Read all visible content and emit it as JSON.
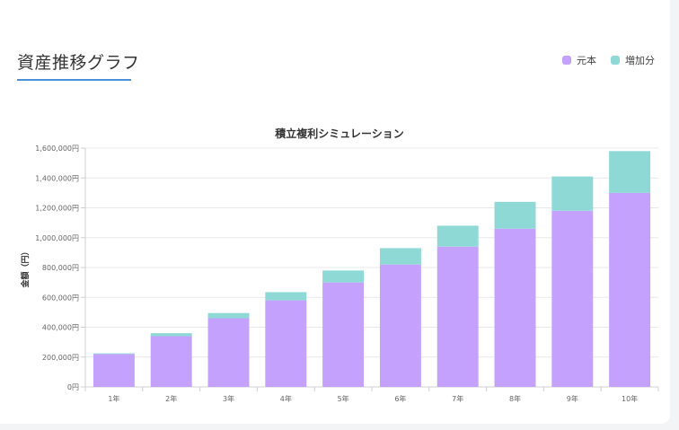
{
  "header": {
    "title": "資産推移グラフ"
  },
  "colors": {
    "principal": "#c3a1fc",
    "gain": "#8ed9d6",
    "title_underline": "#4a90d9"
  },
  "chart_data": {
    "type": "bar",
    "stacked": true,
    "title": "積立複利シミュレーション",
    "ylabel": "金額（円）",
    "xlabel": "",
    "categories": [
      "1年",
      "2年",
      "3年",
      "4年",
      "5年",
      "6年",
      "7年",
      "8年",
      "9年",
      "10年"
    ],
    "series": [
      {
        "name": "元本",
        "color": "#c3a1fc",
        "values": [
          220000,
          340000,
          460000,
          580000,
          700000,
          820000,
          940000,
          1060000,
          1180000,
          1300000
        ]
      },
      {
        "name": "増加分",
        "color": "#8ed9d6",
        "values": [
          5000,
          20000,
          35000,
          55000,
          80000,
          110000,
          140000,
          180000,
          230000,
          280000
        ]
      }
    ],
    "ylim": [
      0,
      1600000
    ],
    "yticks": [
      "0円",
      "200,000円",
      "400,000円",
      "600,000円",
      "800,000円",
      "1,000,000円",
      "1,200,000円",
      "1,400,000円",
      "1,600,000円"
    ],
    "ytick_values": [
      0,
      200000,
      400000,
      600000,
      800000,
      1000000,
      1200000,
      1400000,
      1600000
    ],
    "grid": true,
    "legend": "top-right"
  }
}
